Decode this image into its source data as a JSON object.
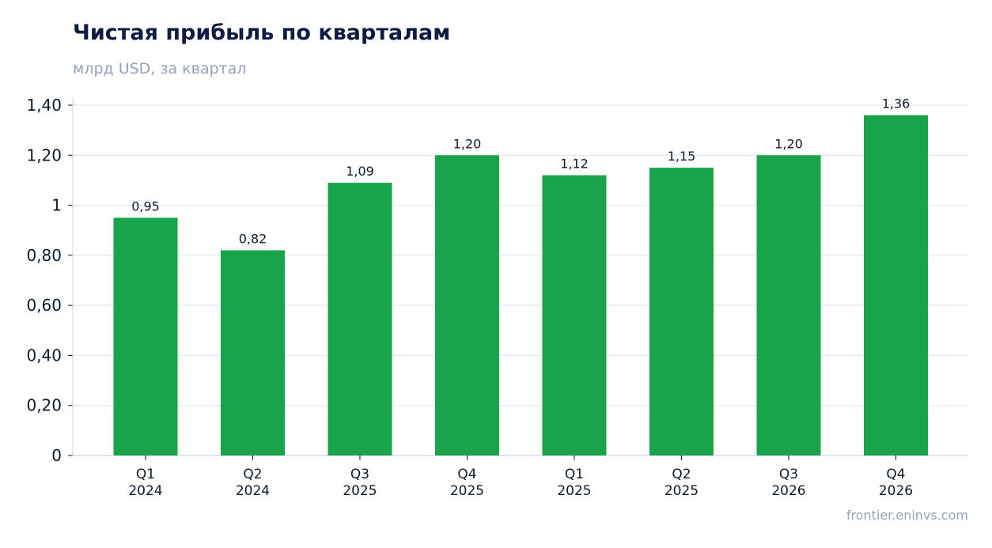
{
  "chart_data": {
    "type": "bar",
    "title": "Чистая прибыль по кварталам",
    "subtitle": "млрд USD, за квартал",
    "categories": [
      [
        "Q1",
        "2024"
      ],
      [
        "Q2",
        "2024"
      ],
      [
        "Q3",
        "2025"
      ],
      [
        "Q4",
        "2025"
      ],
      [
        "Q1",
        "2025"
      ],
      [
        "Q2",
        "2025"
      ],
      [
        "Q3",
        "2026"
      ],
      [
        "Q4",
        "2026"
      ]
    ],
    "values": [
      0.95,
      0.82,
      1.09,
      1.2,
      1.12,
      1.15,
      1.2,
      1.36
    ],
    "value_labels": [
      "0,95",
      "0,82",
      "1,09",
      "1,20",
      "1,12",
      "1,15",
      "1,20",
      "1,36"
    ],
    "ylim": [
      0,
      1.4
    ],
    "yticks": [
      0,
      0.2,
      0.4,
      0.6,
      0.8,
      1.0,
      1.2,
      1.4
    ],
    "ytick_labels": [
      "0",
      "0,20",
      "0,40",
      "0,60",
      "0,80",
      "1",
      "1,20",
      "1,40"
    ],
    "xlabel": "",
    "ylabel": "",
    "grid": true,
    "legend": "none",
    "bar_color": "#19a34a",
    "grid_color": "#e2e8f0",
    "axis_color": "#cbd5e1",
    "source": "frontier.eninvs.com"
  }
}
